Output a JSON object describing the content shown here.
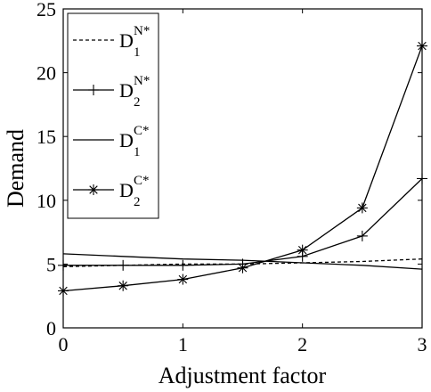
{
  "chart_data": {
    "type": "line",
    "xlabel": "Adjustment factor",
    "ylabel": "Demand",
    "xlim": [
      0,
      3
    ],
    "ylim": [
      0,
      25
    ],
    "x_ticks": [
      "0",
      "1",
      "2",
      "3"
    ],
    "y_ticks": [
      "0",
      "5",
      "10",
      "15",
      "20",
      "25"
    ],
    "grid": false,
    "legend_position": "top-left",
    "x": [
      0,
      0.5,
      1,
      1.5,
      2,
      2.5,
      3
    ],
    "series": [
      {
        "name": "D1N*",
        "label": {
          "base": "D",
          "sup": "N*",
          "sub": "1"
        },
        "style": "dashed",
        "marker": "none",
        "values": [
          4.8,
          4.9,
          5.0,
          5.0,
          5.1,
          5.2,
          5.4
        ]
      },
      {
        "name": "D2N*",
        "label": {
          "base": "D",
          "sup": "N*",
          "sub": "2"
        },
        "style": "solid",
        "marker": "plus",
        "values": [
          4.9,
          4.9,
          4.9,
          5.0,
          5.6,
          7.2,
          11.7
        ]
      },
      {
        "name": "D1C*",
        "label": {
          "base": "D",
          "sup": "C*",
          "sub": "1"
        },
        "style": "solid",
        "marker": "none",
        "values": [
          5.8,
          5.6,
          5.4,
          5.3,
          5.1,
          4.9,
          4.6
        ]
      },
      {
        "name": "D2C*",
        "label": {
          "base": "D",
          "sup": "C*",
          "sub": "2"
        },
        "style": "solid",
        "marker": "star",
        "values": [
          2.9,
          3.3,
          3.8,
          4.7,
          6.1,
          9.4,
          22.1
        ]
      }
    ]
  }
}
